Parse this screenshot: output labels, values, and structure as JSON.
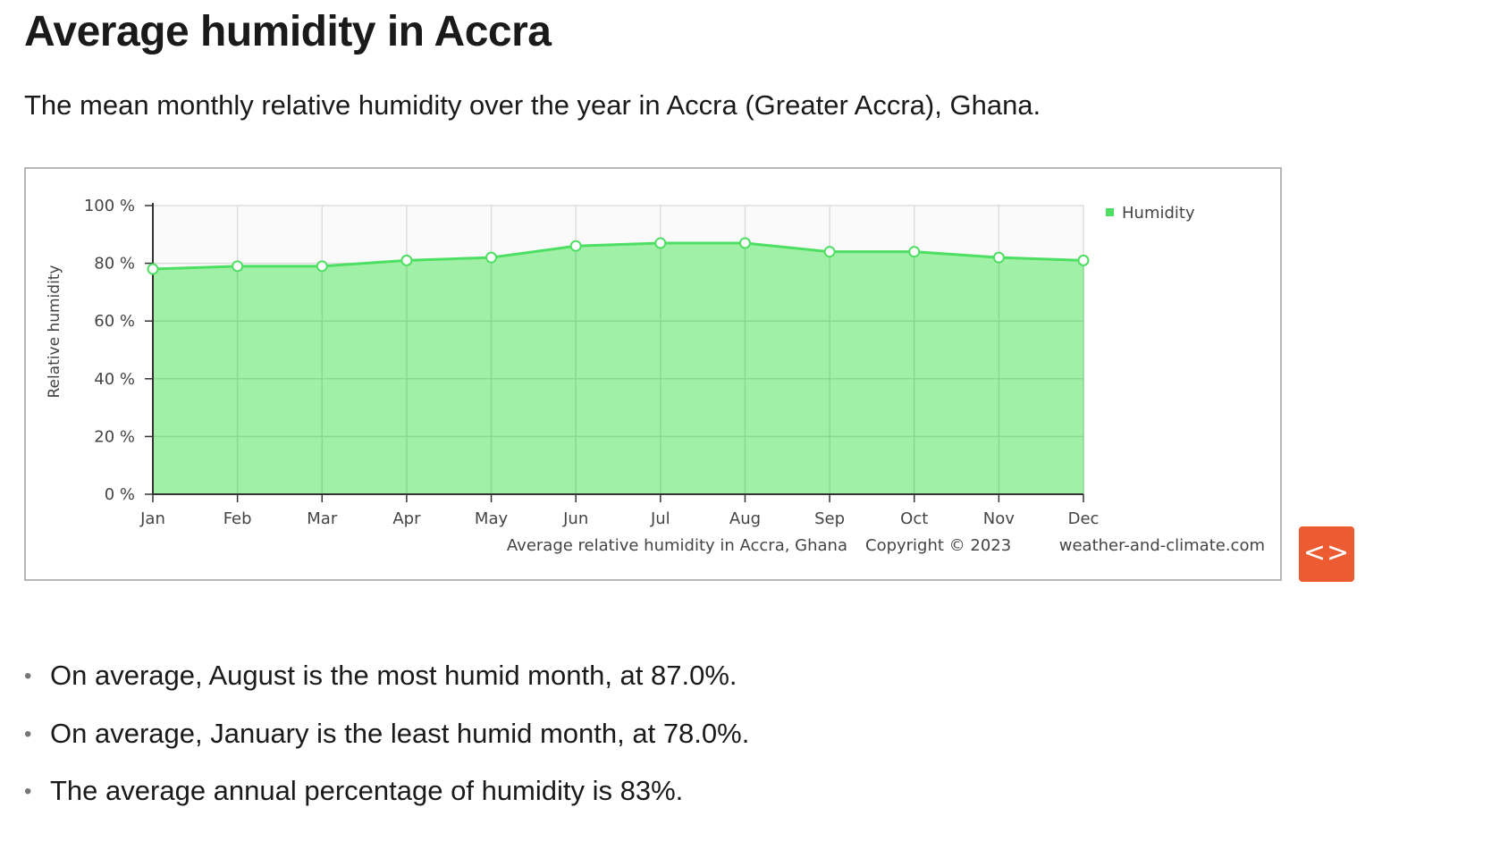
{
  "page": {
    "title": "Average humidity in Accra",
    "subtitle": "The mean monthly relative humidity over the year in Accra (Greater Accra), Ghana."
  },
  "chart_data": {
    "type": "area",
    "categories": [
      "Jan",
      "Feb",
      "Mar",
      "Apr",
      "May",
      "Jun",
      "Jul",
      "Aug",
      "Sep",
      "Oct",
      "Nov",
      "Dec"
    ],
    "series": [
      {
        "name": "Humidity",
        "values": [
          78,
          79,
          79,
          81,
          82,
          86,
          87,
          87,
          84,
          84,
          82,
          81
        ],
        "color": "#4ddf61",
        "fill": "#a1f0a8"
      }
    ],
    "title": "",
    "xlabel": "",
    "ylabel": "Relative humidity",
    "ylim": [
      0,
      100
    ],
    "yticks": [
      "0 %",
      "20 %",
      "40 %",
      "60 %",
      "80 %",
      "100 %"
    ],
    "grid": true,
    "legend_position": "top-right",
    "caption": "Average relative humidity in Accra, Ghana",
    "copyright": "Copyright © 2023",
    "site": "weather-and-climate.com"
  },
  "embed_button": {
    "label": "<>",
    "color": "#ec5b31"
  },
  "facts": [
    "On average, August is the most humid month, at 87.0%.",
    "On average, January is the least humid month, at 78.0%.",
    "The average annual percentage of humidity is 83%."
  ]
}
